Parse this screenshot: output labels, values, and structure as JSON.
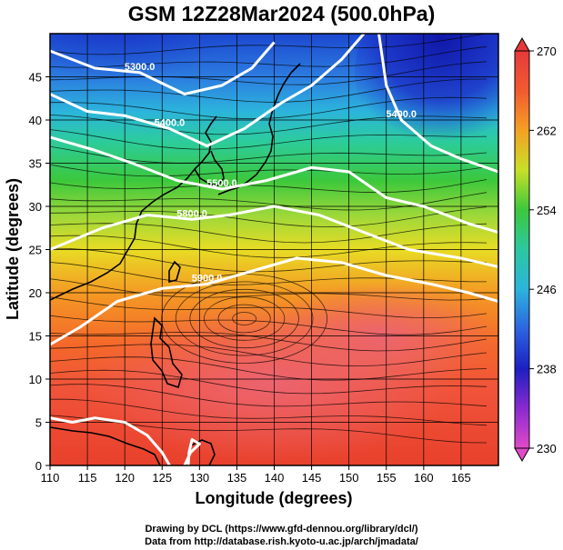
{
  "title": "GSM 12Z28Mar2024 (500.0hPa)",
  "map": {
    "xlabel": "Longitude (degrees)",
    "ylabel": "Latitude (degrees)",
    "x_ticks": [
      "110",
      "115",
      "120",
      "125",
      "130",
      "135",
      "140",
      "145",
      "150",
      "155",
      "160",
      "165"
    ],
    "x_tick_values": [
      110,
      115,
      120,
      125,
      130,
      135,
      140,
      145,
      150,
      155,
      160,
      165
    ],
    "y_ticks": [
      "0",
      "5",
      "10",
      "15",
      "20",
      "25",
      "30",
      "35",
      "40",
      "45"
    ],
    "y_tick_values": [
      0,
      5,
      10,
      15,
      20,
      25,
      30,
      35,
      40,
      45
    ],
    "lon_range": [
      110,
      170
    ],
    "lat_range": [
      0,
      50
    ],
    "grid": true
  },
  "colorbar": {
    "labels": [
      "270",
      "262",
      "254",
      "246",
      "238",
      "230"
    ],
    "values": [
      270,
      262,
      254,
      246,
      238,
      230
    ],
    "range": [
      230,
      270
    ]
  },
  "contours": [
    {
      "label": "5300.0",
      "points": [
        [
          110,
          48
        ],
        [
          116,
          46
        ],
        [
          122,
          45.5
        ],
        [
          128,
          43
        ],
        [
          133,
          44
        ],
        [
          137,
          46
        ],
        [
          140,
          49
        ]
      ]
    },
    {
      "label": "5400.0",
      "points": [
        [
          110,
          43
        ],
        [
          115,
          41
        ],
        [
          120,
          40.5
        ],
        [
          126,
          39
        ],
        [
          131,
          37
        ],
        [
          136,
          39
        ],
        [
          141,
          42
        ],
        [
          145,
          44
        ],
        [
          149,
          47
        ],
        [
          152,
          50
        ]
      ]
    },
    {
      "label": "5400.0",
      "points": [
        [
          154,
          50
        ],
        [
          155,
          44
        ],
        [
          157,
          40
        ],
        [
          161,
          37
        ],
        [
          165,
          35.5
        ],
        [
          170,
          34
        ]
      ]
    },
    {
      "label": "5500.0",
      "points": [
        [
          110,
          38
        ],
        [
          116,
          36.5
        ],
        [
          121,
          35
        ],
        [
          127,
          33
        ],
        [
          133,
          32
        ],
        [
          139,
          33
        ],
        [
          145,
          34.5
        ],
        [
          150,
          34
        ],
        [
          155,
          31
        ],
        [
          160,
          30
        ],
        [
          166,
          28
        ],
        [
          170,
          27
        ]
      ]
    },
    {
      "label": "5800.0",
      "points": [
        [
          110,
          25
        ],
        [
          117,
          27.5
        ],
        [
          123,
          29
        ],
        [
          129,
          28.5
        ],
        [
          134,
          29
        ],
        [
          140,
          30
        ],
        [
          146,
          29
        ],
        [
          152,
          27
        ],
        [
          158,
          25
        ],
        [
          165,
          24
        ],
        [
          170,
          23
        ]
      ]
    },
    {
      "label": "5900.0",
      "points": [
        [
          110,
          14
        ],
        [
          114,
          16
        ],
        [
          119,
          19
        ],
        [
          125,
          20.5
        ],
        [
          131,
          21
        ],
        [
          137,
          22.5
        ],
        [
          143,
          24
        ],
        [
          149,
          23.5
        ],
        [
          155,
          22
        ],
        [
          161,
          21
        ],
        [
          166,
          20
        ],
        [
          170,
          19
        ]
      ]
    },
    {
      "label": "",
      "points": [
        [
          110,
          5.5
        ],
        [
          113,
          5
        ],
        [
          116,
          5.5
        ],
        [
          120,
          5
        ],
        [
          123,
          3.5
        ],
        [
          125,
          1.5
        ],
        [
          126,
          0
        ]
      ]
    },
    {
      "label": "",
      "points": [
        [
          128,
          0
        ],
        [
          128.8,
          1.5
        ],
        [
          130,
          2.5
        ],
        [
          129,
          3
        ],
        [
          128.6,
          1.5
        ],
        [
          128.5,
          0
        ]
      ]
    }
  ],
  "credits": {
    "line1": "Drawing by DCL (https://www.gfd-dennou.org/library/dcl/)",
    "line2": "Data from http://database.rish.kyoto-u.ac.jp/arch/jmadata/"
  }
}
